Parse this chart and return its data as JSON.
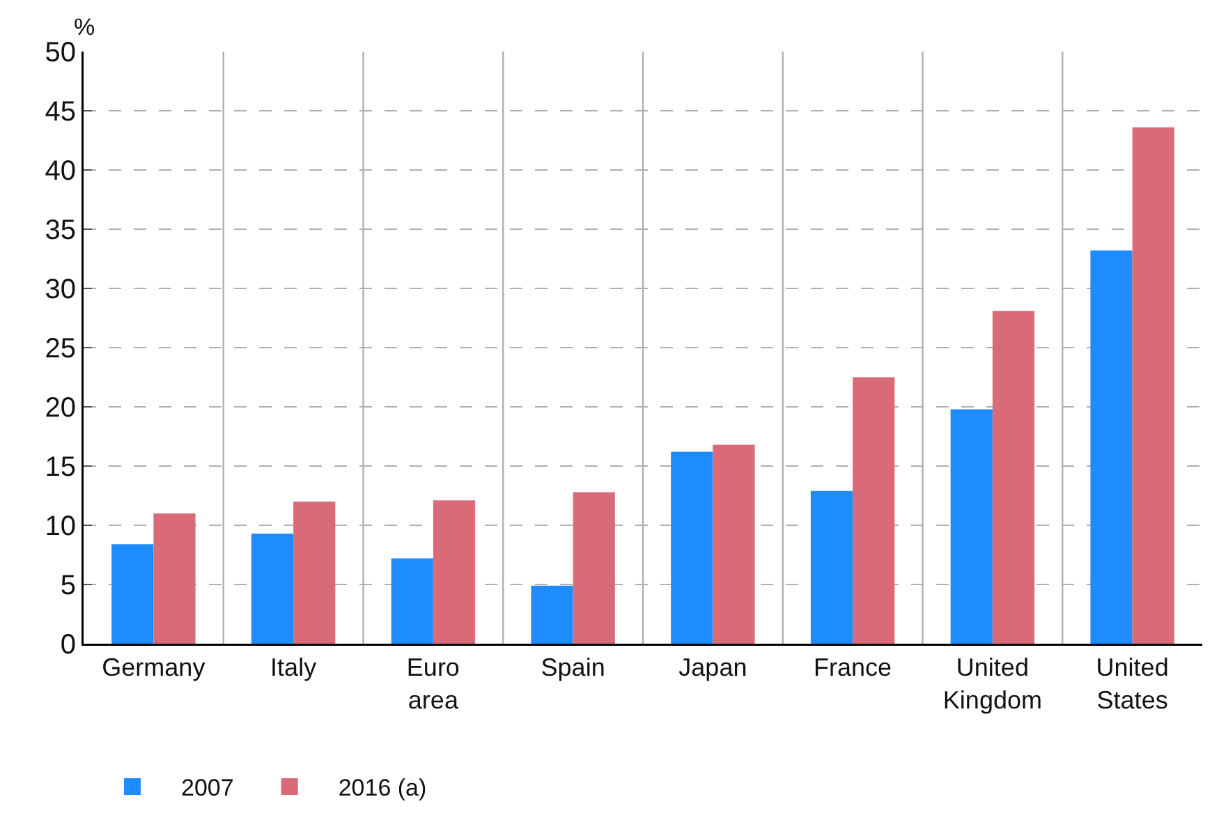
{
  "chart_data": {
    "type": "bar",
    "ylabel": "%",
    "categories": [
      "Germany",
      "Italy",
      "Euro\narea",
      "Spain",
      "Japan",
      "France",
      "United\nKingdom",
      "United\nStates"
    ],
    "series": [
      {
        "name": "2007",
        "color": "#1e8cff",
        "values": [
          8.4,
          9.3,
          7.2,
          4.9,
          16.2,
          12.9,
          19.8,
          33.2
        ]
      },
      {
        "name": "2016 (a)",
        "color": "#d96b78",
        "values": [
          11.0,
          12.0,
          12.1,
          12.8,
          16.8,
          22.5,
          28.1,
          43.6
        ]
      }
    ],
    "ylim": [
      0,
      50
    ],
    "yticks": [
      0,
      5,
      10,
      15,
      20,
      25,
      30,
      35,
      40,
      45,
      50
    ],
    "grid": true,
    "legend": "bottom left"
  }
}
